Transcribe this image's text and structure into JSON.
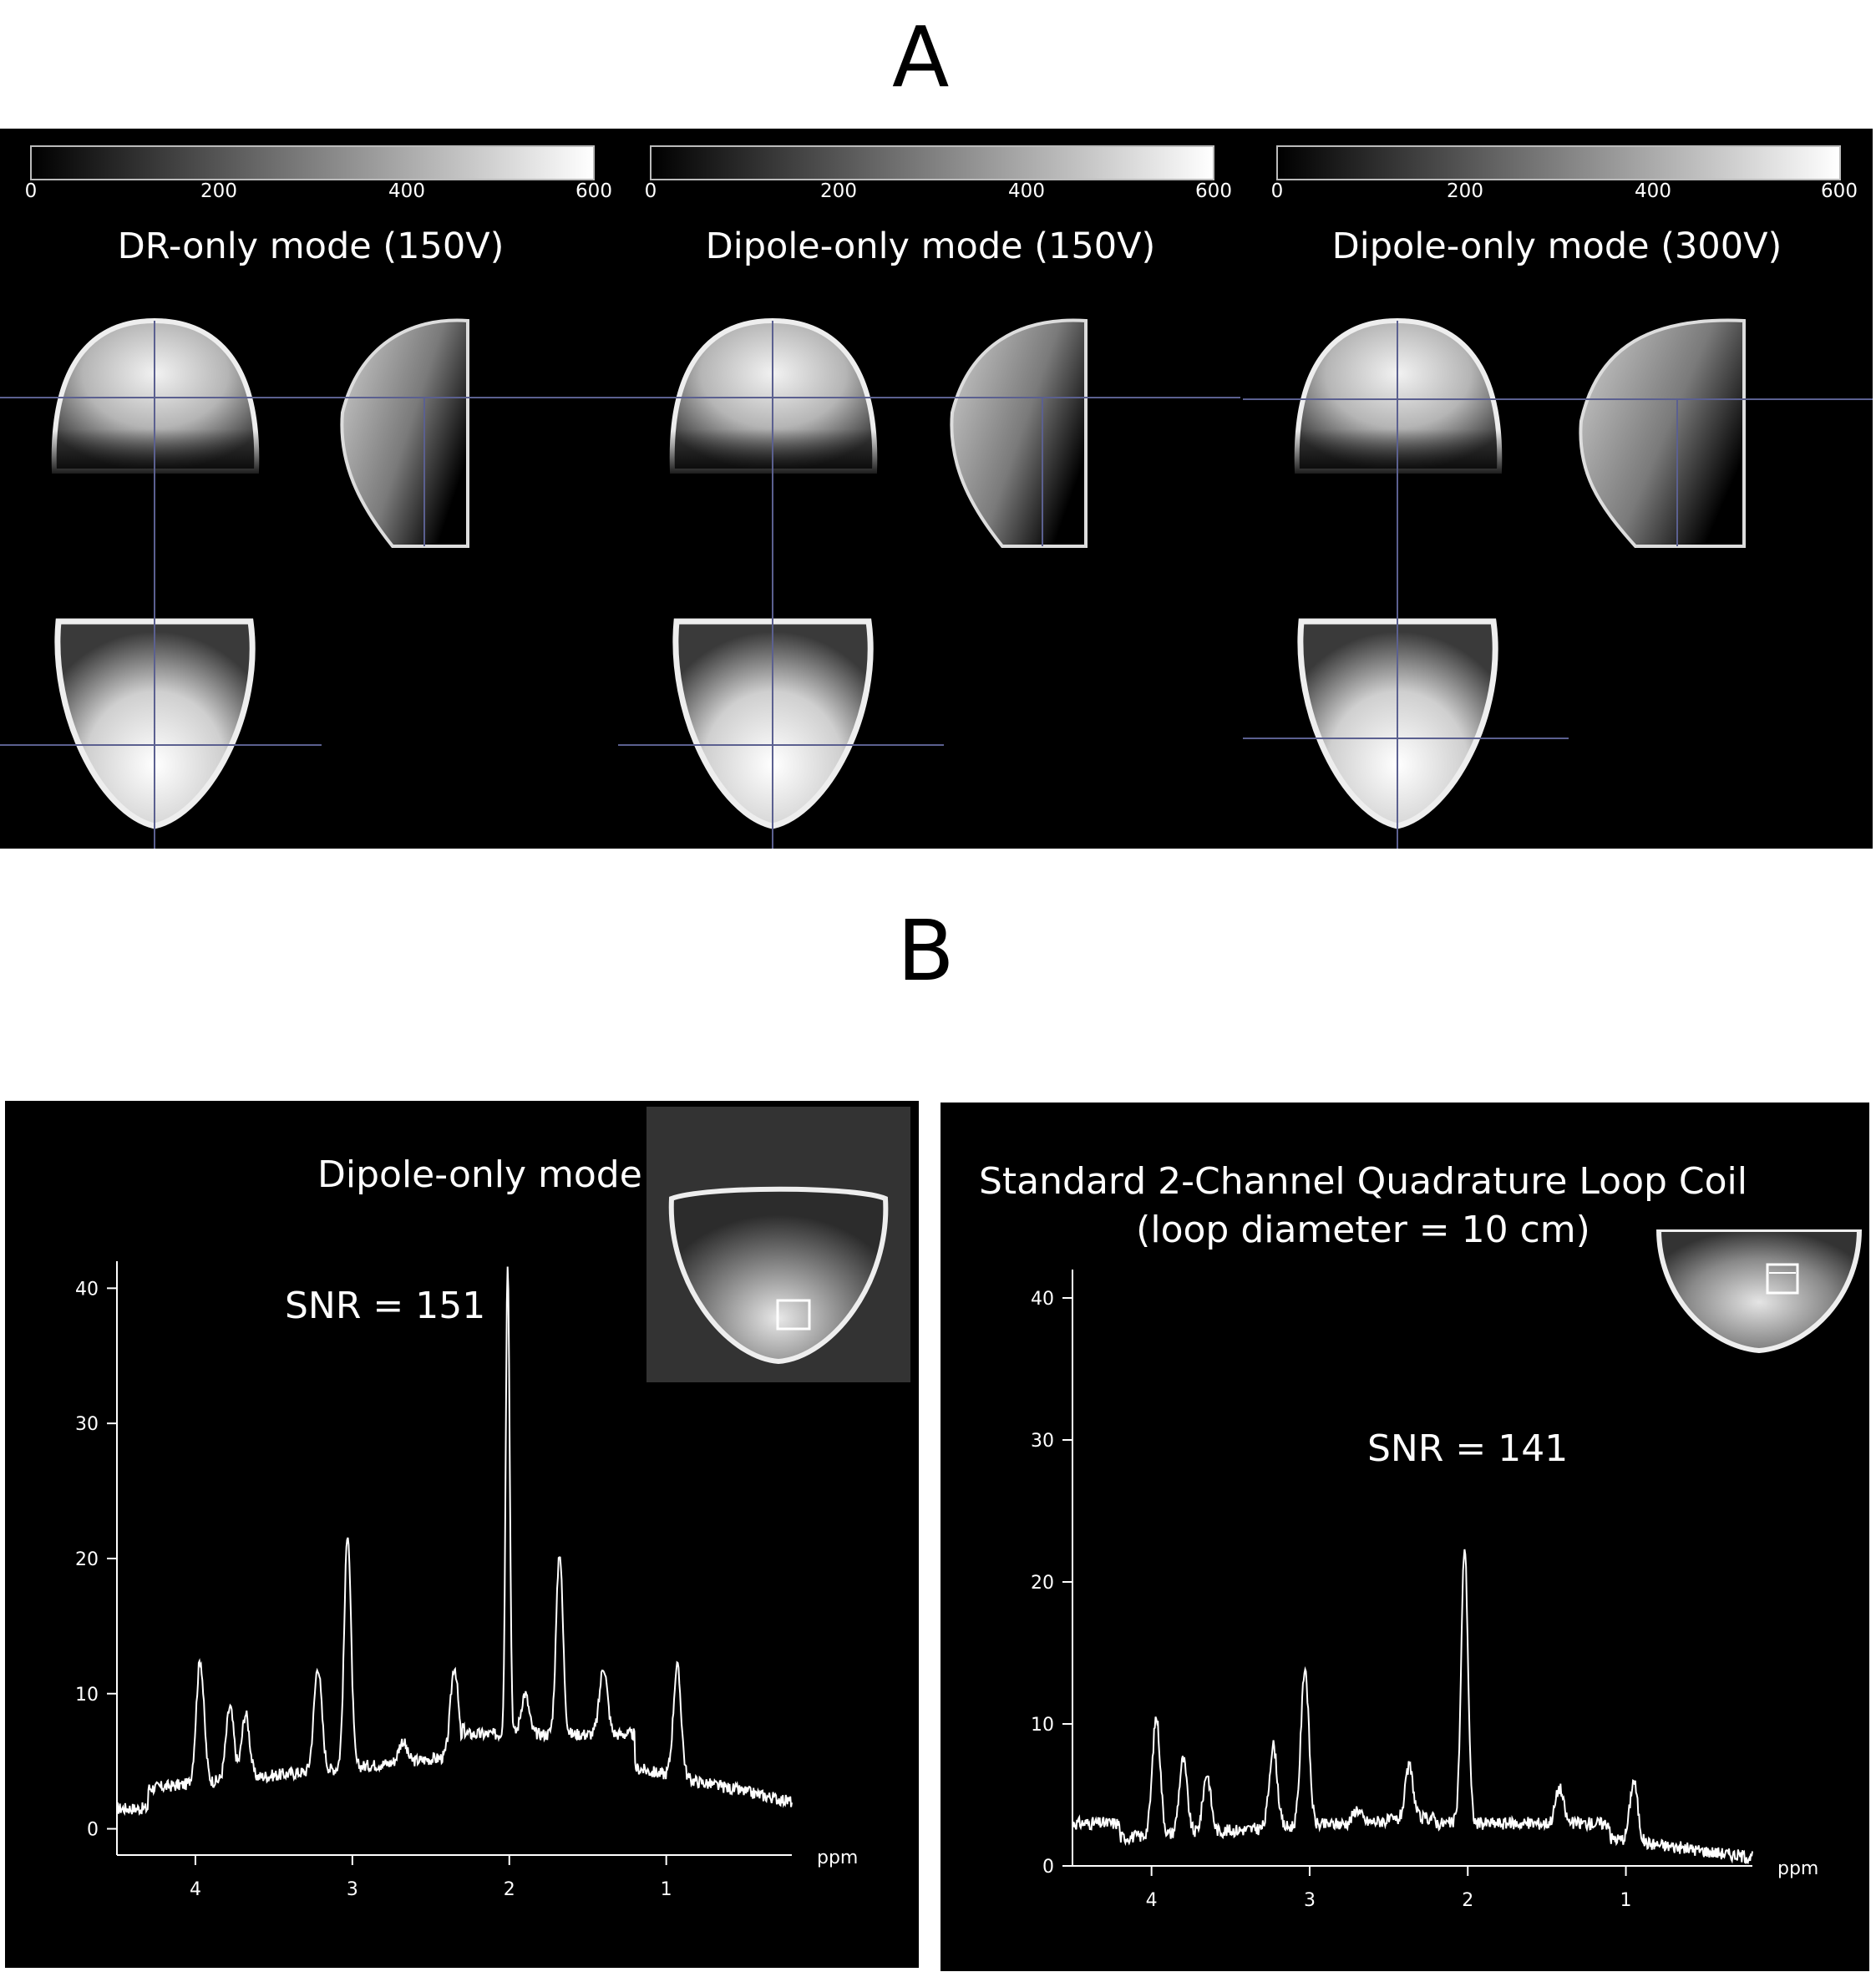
{
  "panels": {
    "a_label": "A",
    "b_label": "B"
  },
  "mri_panel": {
    "colorbar_ticks": [
      "0",
      "200",
      "400",
      "600"
    ],
    "columns": [
      {
        "title": "DR-only mode (150V)"
      },
      {
        "title": "Dipole-only mode (150V)"
      },
      {
        "title": "Dipole-only mode (300V)"
      }
    ]
  },
  "spectra": [
    {
      "title_lines": [
        "Dipole-only mode"
      ],
      "snr_label": "SNR = 151",
      "xlabel": "ppm",
      "chart_data": {
        "type": "line",
        "x_ticks": [
          "4",
          "3",
          "2",
          "1"
        ],
        "y_ticks": [
          "0",
          "10",
          "20",
          "30",
          "40"
        ],
        "xlim": [
          4.5,
          0.2
        ],
        "ylim": [
          -2.5,
          42
        ],
        "peaks": [
          {
            "ppm": 3.97,
            "height": 12.5
          },
          {
            "ppm": 3.78,
            "height": 9.0
          },
          {
            "ppm": 3.68,
            "height": 8.5
          },
          {
            "ppm": 3.22,
            "height": 12.0
          },
          {
            "ppm": 3.03,
            "height": 22.0
          },
          {
            "ppm": 2.68,
            "height": 6.5
          },
          {
            "ppm": 2.35,
            "height": 12.0
          },
          {
            "ppm": 2.01,
            "height": 42.0
          },
          {
            "ppm": 1.9,
            "height": 10.0
          },
          {
            "ppm": 1.68,
            "height": 20.5
          },
          {
            "ppm": 1.4,
            "height": 12.0
          },
          {
            "ppm": 0.93,
            "height": 12.0
          }
        ]
      }
    },
    {
      "title_lines": [
        "Standard 2-Channel Quadrature Loop Coil",
        "(loop diameter = 10 cm)"
      ],
      "snr_label": "SNR = 141",
      "xlabel": "ppm",
      "chart_data": {
        "type": "line",
        "x_ticks": [
          "4",
          "3",
          "2",
          "1"
        ],
        "y_ticks": [
          "0",
          "10",
          "20",
          "30",
          "40"
        ],
        "xlim": [
          4.5,
          0.2
        ],
        "ylim": [
          0,
          42
        ],
        "peaks": [
          {
            "ppm": 3.97,
            "height": 10.5
          },
          {
            "ppm": 3.8,
            "height": 7.5
          },
          {
            "ppm": 3.65,
            "height": 6.5
          },
          {
            "ppm": 3.23,
            "height": 8.5
          },
          {
            "ppm": 3.03,
            "height": 14.0
          },
          {
            "ppm": 2.7,
            "height": 4.0
          },
          {
            "ppm": 2.37,
            "height": 7.0
          },
          {
            "ppm": 2.02,
            "height": 22.5
          },
          {
            "ppm": 1.68,
            "height": 3.0
          },
          {
            "ppm": 1.42,
            "height": 5.5
          },
          {
            "ppm": 0.95,
            "height": 6.0
          }
        ]
      }
    }
  ]
}
